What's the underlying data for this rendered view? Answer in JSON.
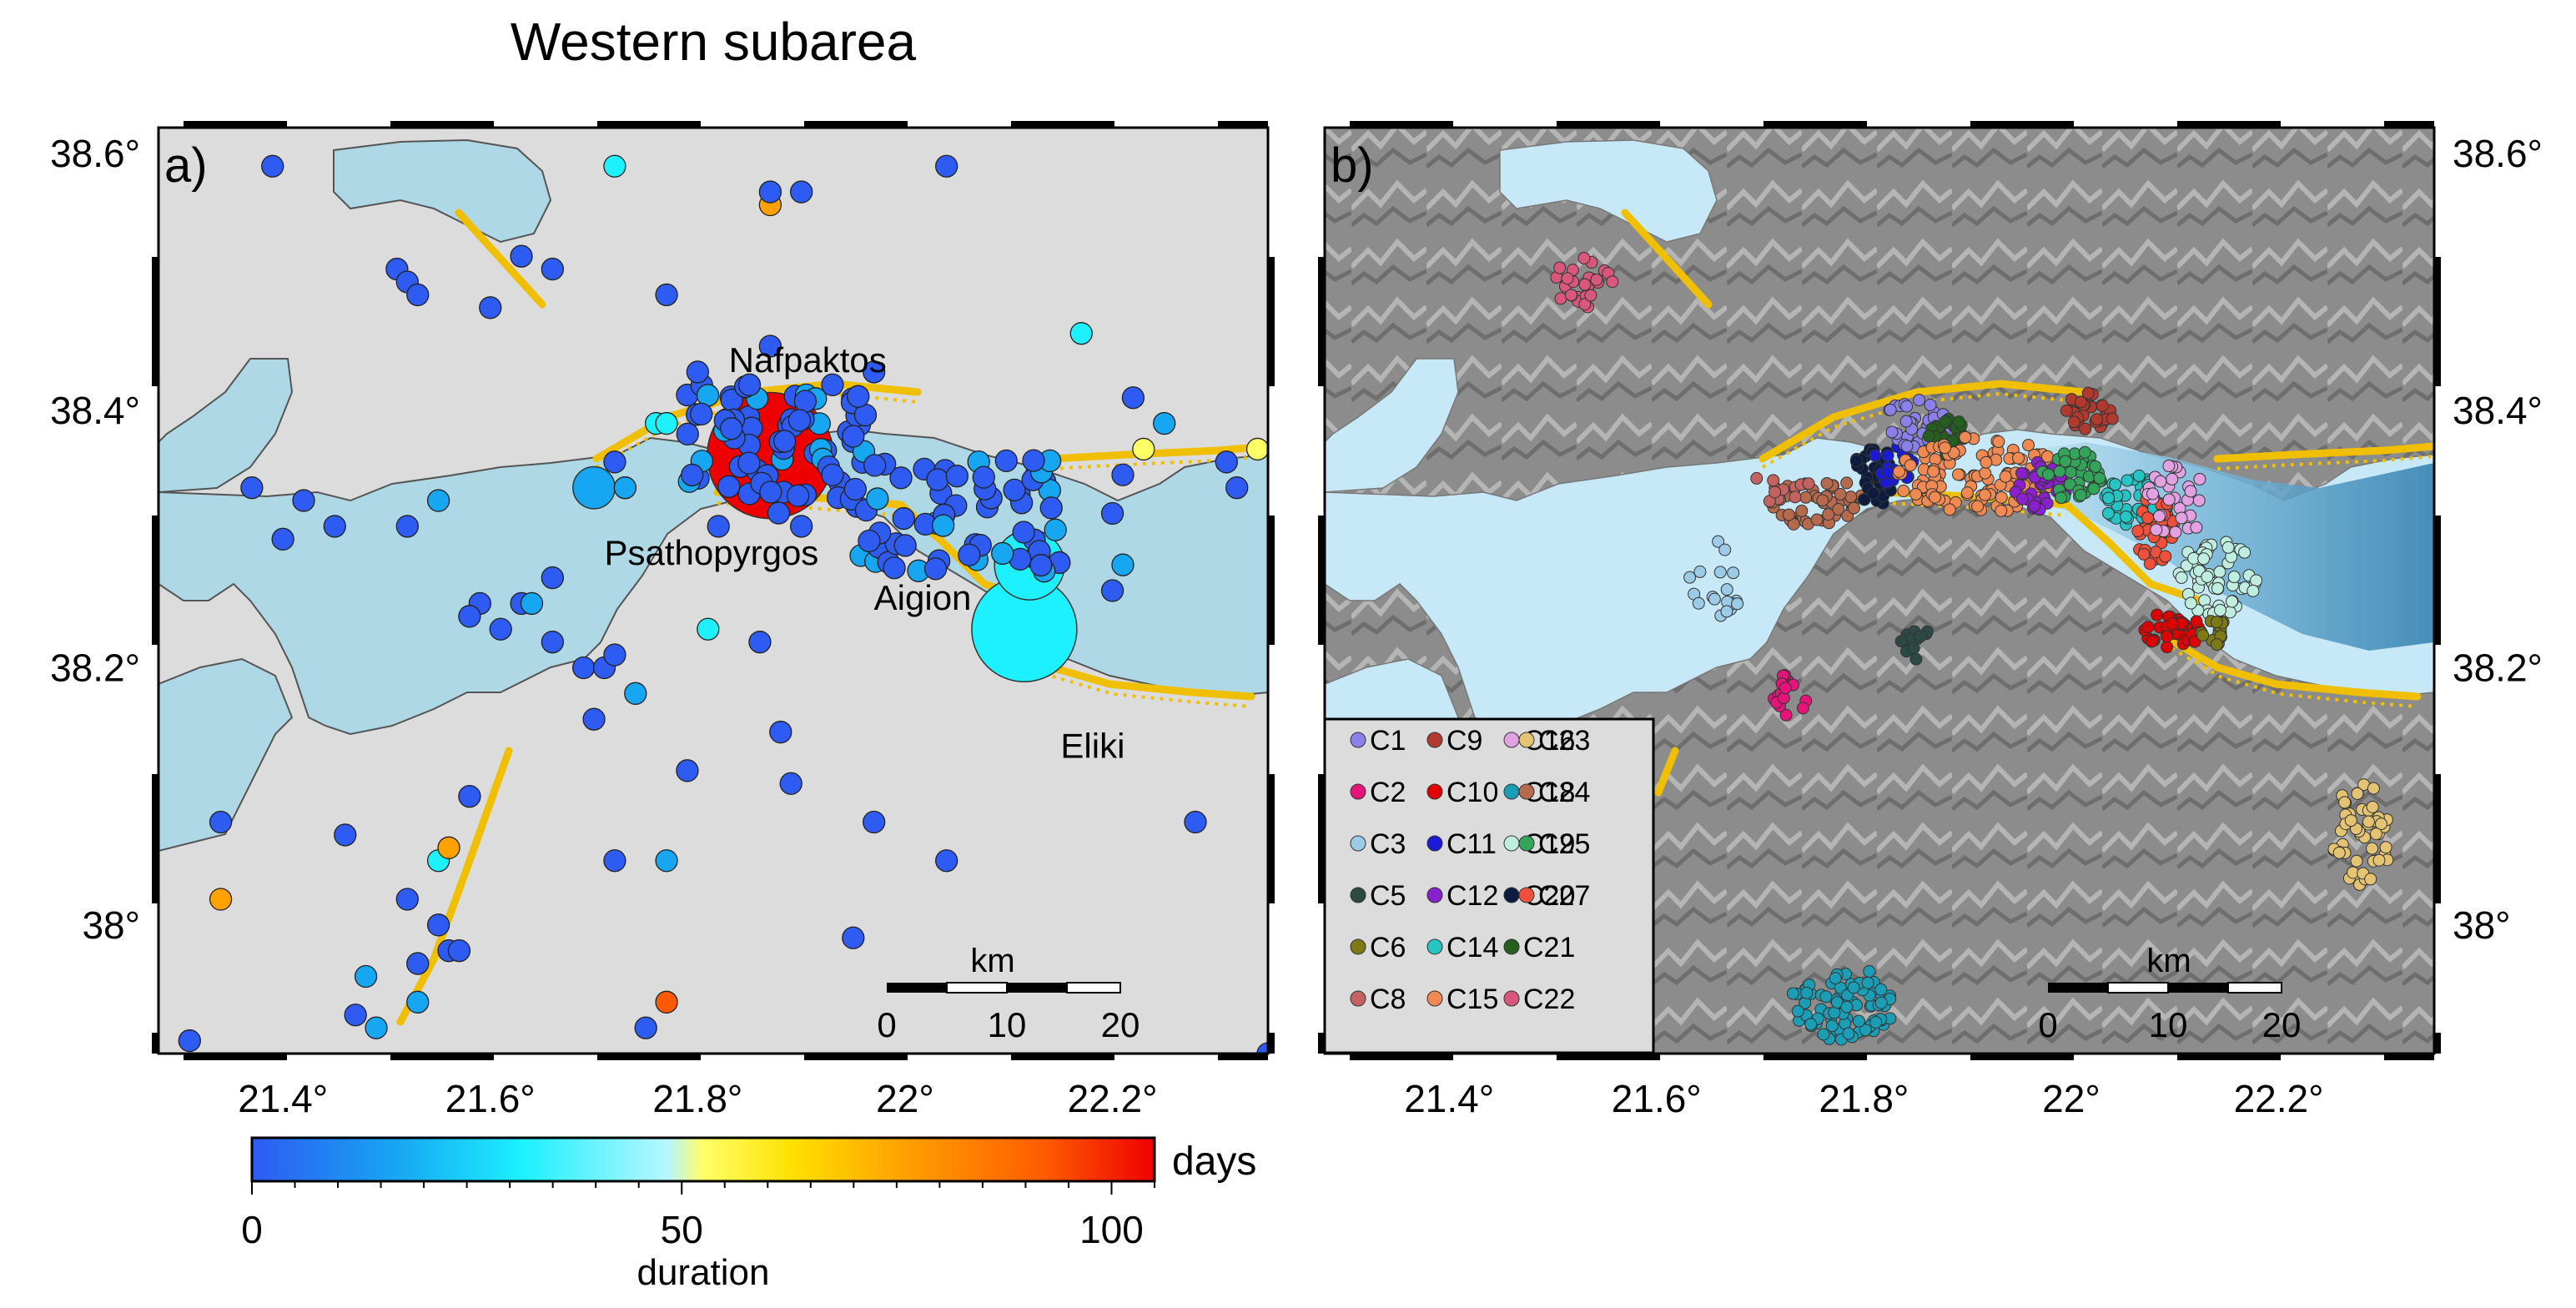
{
  "title": "Western subarea",
  "lon_ticks": [
    "21.4°",
    "21.6°",
    "21.8°",
    "22°",
    "22.2°"
  ],
  "lat_ticks": [
    "38.6°",
    "38.4°",
    "38.2°",
    "38°"
  ],
  "map_extent": {
    "lon": [
      21.28,
      22.35
    ],
    "lat": [
      37.9,
      38.62
    ]
  },
  "colors": {
    "land": "#dcdcdc",
    "sea": "#aed8e6",
    "fault": "#f0c000",
    "relief_land": "#8c8c8c",
    "relief_sea": "#c7e8f6",
    "deep_sea": "#3f8fbd"
  },
  "panel_a": {
    "label": "a)",
    "place_labels": [
      {
        "name": "Nafpaktos",
        "lon": 21.83,
        "lat": 38.43
      },
      {
        "name": "Psathopyrgos",
        "lon": 21.71,
        "lat": 38.28
      },
      {
        "name": "Aigion",
        "lon": 21.97,
        "lat": 38.245
      },
      {
        "name": "Eliki",
        "lon": 22.15,
        "lat": 38.13
      }
    ],
    "scale_bar": {
      "unit": "km",
      "ticks": [
        "0",
        "10",
        "20"
      ]
    },
    "colorbar": {
      "unit": "days",
      "label": "duration",
      "ticks": [
        "0",
        "50",
        "100"
      ],
      "min": 0,
      "max": 105
    },
    "events": [
      [
        21.39,
        38.59,
        0
      ],
      [
        21.51,
        38.51,
        2
      ],
      [
        21.52,
        38.5,
        2
      ],
      [
        21.53,
        38.49,
        4
      ],
      [
        21.63,
        38.52,
        3
      ],
      [
        21.6,
        38.48,
        5
      ],
      [
        21.66,
        38.51,
        2
      ],
      [
        21.72,
        38.59,
        35
      ],
      [
        21.77,
        38.49,
        2
      ],
      [
        21.87,
        38.56,
        80
      ],
      [
        21.87,
        38.57,
        2
      ],
      [
        21.9,
        38.57,
        2
      ],
      [
        22.04,
        38.59,
        3
      ],
      [
        21.87,
        38.45,
        4
      ],
      [
        21.85,
        38.42,
        8
      ],
      [
        21.93,
        38.42,
        8
      ],
      [
        21.97,
        38.43,
        6
      ],
      [
        21.76,
        38.39,
        40
      ],
      [
        21.8,
        38.43,
        12
      ],
      [
        22.17,
        38.46,
        45
      ],
      [
        22.22,
        38.41,
        3
      ],
      [
        22.25,
        38.39,
        20
      ],
      [
        22.23,
        38.37,
        55
      ],
      [
        22.34,
        38.37,
        55
      ],
      [
        22.31,
        38.36,
        7
      ],
      [
        21.37,
        38.34,
        2
      ],
      [
        21.42,
        38.33,
        1
      ],
      [
        21.55,
        38.33,
        25
      ],
      [
        21.52,
        38.31,
        3
      ],
      [
        21.45,
        38.31,
        1
      ],
      [
        21.4,
        38.3,
        3
      ],
      [
        21.59,
        38.25,
        4
      ],
      [
        21.58,
        38.24,
        3
      ],
      [
        21.61,
        38.23,
        6
      ],
      [
        21.63,
        38.25,
        10
      ],
      [
        21.64,
        38.25,
        25
      ],
      [
        21.66,
        38.27,
        4
      ],
      [
        21.69,
        38.2,
        4
      ],
      [
        21.71,
        38.2,
        5
      ],
      [
        21.7,
        38.16,
        4
      ],
      [
        21.66,
        38.22,
        4
      ],
      [
        21.74,
        38.18,
        30
      ],
      [
        21.72,
        38.21,
        2
      ],
      [
        21.73,
        38.34,
        1
      ],
      [
        21.73,
        38.34,
        30
      ],
      [
        21.72,
        38.36,
        4
      ],
      [
        21.77,
        38.39,
        35
      ],
      [
        21.81,
        38.23,
        45
      ],
      [
        21.82,
        38.31,
        9
      ],
      [
        21.86,
        38.22,
        4
      ],
      [
        21.88,
        38.15,
        2
      ],
      [
        21.9,
        38.31,
        3
      ],
      [
        21.95,
        38.38,
        3
      ],
      [
        21.93,
        38.35,
        2
      ],
      [
        22.21,
        38.35,
        3
      ],
      [
        22.2,
        38.32,
        4
      ],
      [
        22.21,
        38.28,
        20
      ],
      [
        22.2,
        38.26,
        3
      ],
      [
        22.32,
        38.34,
        2
      ],
      [
        21.34,
        38.08,
        4
      ],
      [
        21.46,
        38.07,
        2
      ],
      [
        21.55,
        38.05,
        40
      ],
      [
        21.56,
        38.06,
        80
      ],
      [
        21.58,
        38.1,
        3
      ],
      [
        21.52,
        38.02,
        4
      ],
      [
        21.53,
        37.97,
        3
      ],
      [
        21.55,
        38.0,
        2
      ],
      [
        21.56,
        37.98,
        3
      ],
      [
        21.57,
        37.98,
        4
      ],
      [
        21.48,
        37.96,
        30
      ],
      [
        21.53,
        37.94,
        25
      ],
      [
        21.49,
        37.92,
        30
      ],
      [
        21.47,
        37.93,
        3
      ],
      [
        21.31,
        37.91,
        3
      ],
      [
        21.34,
        38.02,
        80
      ],
      [
        21.77,
        38.05,
        30
      ],
      [
        21.72,
        38.05,
        4
      ],
      [
        21.75,
        37.92,
        3
      ],
      [
        21.79,
        38.12,
        3
      ],
      [
        21.89,
        38.11,
        3
      ],
      [
        21.95,
        37.99,
        4
      ],
      [
        22.04,
        38.05,
        2
      ],
      [
        21.97,
        38.08,
        4
      ],
      [
        22.28,
        38.08,
        5
      ],
      [
        22.35,
        37.9,
        5
      ],
      [
        21.77,
        37.94,
        95
      ]
    ],
    "big_events": [
      {
        "lon": 21.87,
        "lat": 38.365,
        "days": 105,
        "size": 36
      },
      {
        "lon": 22.115,
        "lat": 38.23,
        "days": 40,
        "size": 30
      },
      {
        "lon": 22.12,
        "lat": 38.28,
        "days": 40,
        "size": 20
      },
      {
        "lon": 21.7,
        "lat": 38.34,
        "days": 20,
        "size": 12
      }
    ],
    "nafpaktos_cluster": {
      "lon": 21.88,
      "lat": 38.37,
      "n": 70,
      "days": 5
    },
    "aigion_cluster": {
      "lon": 22.05,
      "lat": 38.32,
      "n": 60,
      "days": 8
    }
  },
  "panel_b": {
    "label": "b)",
    "scale_bar": {
      "unit": "km",
      "ticks": [
        "0",
        "10",
        "20"
      ]
    },
    "legend": [
      {
        "name": "C1",
        "color": "#8b7fe8"
      },
      {
        "name": "C9",
        "color": "#b13a2e"
      },
      {
        "name": "C16",
        "color": "#e2a2e2"
      },
      {
        "name": "C23",
        "color": "#e4c473"
      },
      {
        "name": "C2",
        "color": "#e3157a"
      },
      {
        "name": "C10",
        "color": "#e00000"
      },
      {
        "name": "C18",
        "color": "#1a9db5"
      },
      {
        "name": "C24",
        "color": "#b56a4e"
      },
      {
        "name": "C3",
        "color": "#9bcbe7"
      },
      {
        "name": "C11",
        "color": "#1b1bd6"
      },
      {
        "name": "C19",
        "color": "#bfeee0"
      },
      {
        "name": "C25",
        "color": "#34a45b"
      },
      {
        "name": "C5",
        "color": "#2c4a44"
      },
      {
        "name": "C12",
        "color": "#8a1fcc"
      },
      {
        "name": "C20",
        "color": "#0c1b3e"
      },
      {
        "name": "C27",
        "color": "#f0503a"
      },
      {
        "name": "C6",
        "color": "#7d7a16"
      },
      {
        "name": "C14",
        "color": "#27c4c4"
      },
      {
        "name": "C21",
        "color": "#255e1f"
      },
      {
        "name": "C8",
        "color": "#c46262"
      },
      {
        "name": "C15",
        "color": "#f08a52"
      },
      {
        "name": "C22",
        "color": "#d9577a"
      }
    ],
    "clusters": [
      {
        "name": "C22",
        "lon": 21.53,
        "lat": 38.5,
        "n": 30,
        "rx": 0.03,
        "ry": 0.02
      },
      {
        "name": "C3",
        "lon": 21.66,
        "lat": 38.27,
        "n": 18,
        "rx": 0.03,
        "ry": 0.03
      },
      {
        "name": "C2",
        "lon": 21.73,
        "lat": 38.18,
        "n": 15,
        "rx": 0.02,
        "ry": 0.02
      },
      {
        "name": "C5",
        "lon": 21.85,
        "lat": 38.22,
        "n": 12,
        "rx": 0.015,
        "ry": 0.015
      },
      {
        "name": "C18",
        "lon": 21.78,
        "lat": 37.94,
        "n": 80,
        "rx": 0.05,
        "ry": 0.03
      },
      {
        "name": "C23",
        "lon": 22.28,
        "lat": 38.07,
        "n": 50,
        "rx": 0.03,
        "ry": 0.04
      },
      {
        "name": "C24",
        "lon": 21.75,
        "lat": 38.33,
        "n": 50,
        "rx": 0.05,
        "ry": 0.02
      },
      {
        "name": "C8",
        "lon": 21.72,
        "lat": 38.34,
        "n": 12,
        "rx": 0.03,
        "ry": 0.015
      },
      {
        "name": "C20",
        "lon": 21.81,
        "lat": 38.35,
        "n": 35,
        "rx": 0.02,
        "ry": 0.025
      },
      {
        "name": "C11",
        "lon": 21.83,
        "lat": 38.36,
        "n": 20,
        "rx": 0.02,
        "ry": 0.02
      },
      {
        "name": "C1",
        "lon": 21.85,
        "lat": 38.39,
        "n": 35,
        "rx": 0.03,
        "ry": 0.02
      },
      {
        "name": "C21",
        "lon": 21.88,
        "lat": 38.38,
        "n": 25,
        "rx": 0.02,
        "ry": 0.015
      },
      {
        "name": "C15",
        "lon": 21.91,
        "lat": 38.35,
        "n": 120,
        "rx": 0.08,
        "ry": 0.03
      },
      {
        "name": "C12",
        "lon": 21.97,
        "lat": 38.34,
        "n": 35,
        "rx": 0.025,
        "ry": 0.02
      },
      {
        "name": "C25",
        "lon": 22.0,
        "lat": 38.35,
        "n": 40,
        "rx": 0.03,
        "ry": 0.02
      },
      {
        "name": "C9",
        "lon": 22.02,
        "lat": 38.4,
        "n": 30,
        "rx": 0.025,
        "ry": 0.015
      },
      {
        "name": "C14",
        "lon": 22.06,
        "lat": 38.33,
        "n": 40,
        "rx": 0.03,
        "ry": 0.02
      },
      {
        "name": "C27",
        "lon": 22.08,
        "lat": 38.31,
        "n": 40,
        "rx": 0.02,
        "ry": 0.03
      },
      {
        "name": "C16",
        "lon": 22.1,
        "lat": 38.33,
        "n": 30,
        "rx": 0.03,
        "ry": 0.03
      },
      {
        "name": "C19",
        "lon": 22.14,
        "lat": 38.27,
        "n": 60,
        "rx": 0.04,
        "ry": 0.03
      },
      {
        "name": "C10",
        "lon": 22.1,
        "lat": 38.23,
        "n": 40,
        "rx": 0.03,
        "ry": 0.015
      },
      {
        "name": "C6",
        "lon": 22.14,
        "lat": 38.23,
        "n": 15,
        "rx": 0.015,
        "ry": 0.015
      }
    ]
  }
}
